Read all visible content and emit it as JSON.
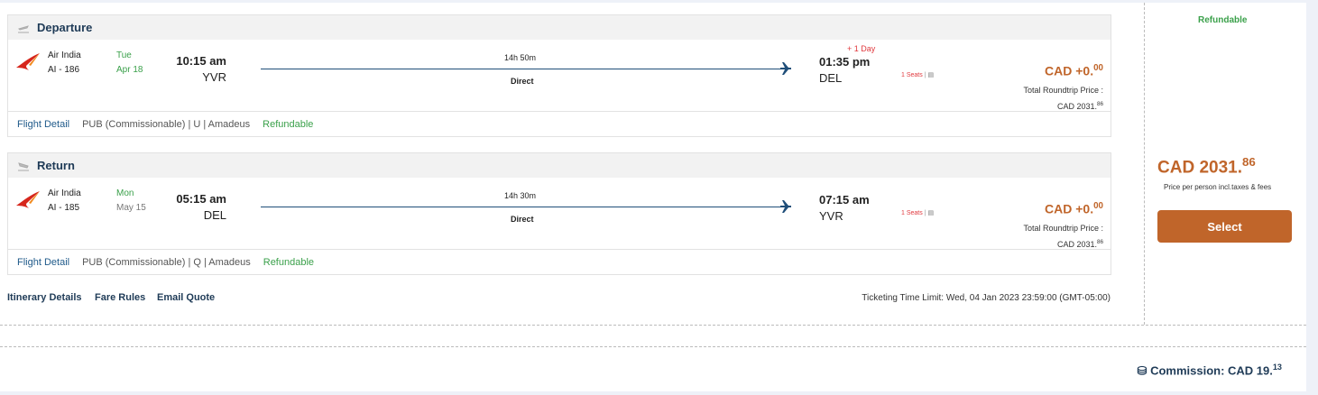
{
  "segments": [
    {
      "title": "Departure",
      "airline": "Air India",
      "flight": "AI - 186",
      "weekday": "Tue",
      "date": "Apr 18",
      "dep_time": "10:15 am",
      "dep_code": "YVR",
      "duration": "14h 50m",
      "stops": "Direct",
      "arr_time": "01:35 pm",
      "arr_code": "DEL",
      "day_offset": "+ 1 Day",
      "seats": "1 Seats",
      "price": "CAD +0.",
      "price_dec": "00",
      "total_label": "Total Roundtrip Price :",
      "total": "CAD 2031.",
      "total_dec": "86",
      "detail_link": "Flight Detail",
      "fare_info": "PUB (Commissionable) | U | Amadeus",
      "refund": "Refundable"
    },
    {
      "title": "Return",
      "airline": "Air India",
      "flight": "AI - 185",
      "weekday": "Mon",
      "date": "May 15",
      "dep_time": "05:15 am",
      "dep_code": "DEL",
      "duration": "14h 30m",
      "stops": "Direct",
      "arr_time": "07:15 am",
      "arr_code": "YVR",
      "seats": "1 Seats",
      "price": "CAD +0.",
      "price_dec": "00",
      "total_label": "Total Roundtrip Price :",
      "total": "CAD 2031.",
      "total_dec": "86",
      "detail_link": "Flight Detail",
      "fare_info": "PUB (Commissionable) | Q | Amadeus",
      "refund": "Refundable"
    }
  ],
  "links": {
    "itinerary": "Itinerary Details",
    "fare_rules": "Fare Rules",
    "email": "Email Quote"
  },
  "ticketing": "Ticketing Time Limit: Wed, 04 Jan 2023 23:59:00 (GMT-05:00)",
  "side": {
    "refundable": "Refundable",
    "price": "CAD 2031.",
    "price_dec": "86",
    "note": "Price per person incl.taxes & fees",
    "select": "Select"
  },
  "commission": {
    "label": "Commission: CAD 19.",
    "dec": "13"
  },
  "colors": {
    "accent": "#c0652a",
    "navy": "#1f3b57",
    "green": "#3aa04a",
    "red": "#e0393e"
  }
}
